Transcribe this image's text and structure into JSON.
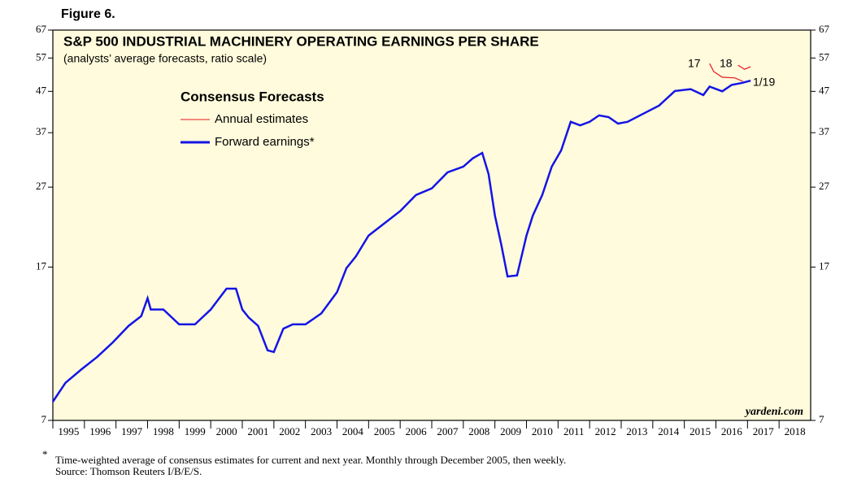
{
  "figure_label": "Figure 6.",
  "chart_data": {
    "type": "line",
    "title": "S&P 500 INDUSTRIAL MACHINERY OPERATING EARNINGS PER SHARE",
    "subtitle": "(analysts’ average forecasts, ratio scale)",
    "legend_title": "Consensus Forecasts",
    "log_scale": true,
    "xlim": [
      1995,
      2019
    ],
    "xticks": [
      1995,
      1996,
      1997,
      1998,
      1999,
      2000,
      2001,
      2002,
      2003,
      2004,
      2005,
      2006,
      2007,
      2008,
      2009,
      2010,
      2011,
      2012,
      2013,
      2014,
      2015,
      2016,
      2017,
      2018
    ],
    "ylim": [
      7,
      67
    ],
    "yticks": [
      7,
      17,
      27,
      37,
      47,
      57,
      67
    ],
    "series": [
      {
        "name": "Annual estimates",
        "color": "#e8141e",
        "x": [
          2015.8,
          2015.93,
          2016.2,
          2016.6,
          2016.85,
          null,
          2016.7,
          2016.9,
          2017.1
        ],
        "values": [
          55.2,
          52.7,
          51.0,
          50.8,
          49.8,
          null,
          54.7,
          53.4,
          54.2
        ]
      },
      {
        "name": "Forward earnings*",
        "color": "#1414e6",
        "x": [
          1995.0,
          1995.4,
          1995.9,
          1996.4,
          1996.9,
          1997.4,
          1997.8,
          1998.0,
          1998.1,
          1998.5,
          1999.0,
          1999.5,
          2000.0,
          2000.5,
          2000.8,
          2001.0,
          2001.2,
          2001.5,
          2001.8,
          2002.0,
          2002.3,
          2002.6,
          2003.0,
          2003.5,
          2004.0,
          2004.3,
          2004.6,
          2005.0,
          2005.5,
          2006.0,
          2006.5,
          2007.0,
          2007.5,
          2008.0,
          2008.3,
          2008.6,
          2008.8,
          2009.0,
          2009.2,
          2009.4,
          2009.7,
          2010.0,
          2010.2,
          2010.5,
          2010.8,
          2011.1,
          2011.4,
          2011.7,
          2012.0,
          2012.3,
          2012.6,
          2012.9,
          2013.2,
          2013.7,
          2014.2,
          2014.7,
          2015.2,
          2015.6,
          2015.8,
          2016.2,
          2016.5,
          2016.8,
          2017.1
        ],
        "values": [
          7.8,
          8.7,
          9.4,
          10.1,
          11.0,
          12.1,
          12.8,
          14.2,
          13.3,
          13.3,
          12.2,
          12.2,
          13.3,
          15.0,
          15.0,
          13.3,
          12.7,
          12.1,
          10.5,
          10.4,
          11.9,
          12.2,
          12.2,
          13.0,
          14.7,
          16.9,
          18.1,
          20.4,
          21.9,
          23.5,
          25.8,
          26.8,
          29.4,
          30.4,
          31.9,
          32.9,
          29.1,
          22.9,
          19.4,
          16.1,
          16.2,
          20.4,
          22.9,
          25.8,
          30.4,
          33.4,
          39.4,
          38.6,
          39.4,
          40.9,
          40.5,
          39.0,
          39.4,
          41.3,
          43.3,
          47.1,
          47.6,
          46.0,
          48.3,
          47.0,
          48.8,
          49.3,
          50.0
        ]
      }
    ],
    "annotations": [
      "17",
      "18",
      "1/19",
      "yardeni.com"
    ]
  },
  "footnote": [
    "*",
    "Time-weighted average of consensus estimates for current and next year. Monthly through December 2005, then weekly.",
    "Source: Thomson Reuters I/B/E/S."
  ]
}
